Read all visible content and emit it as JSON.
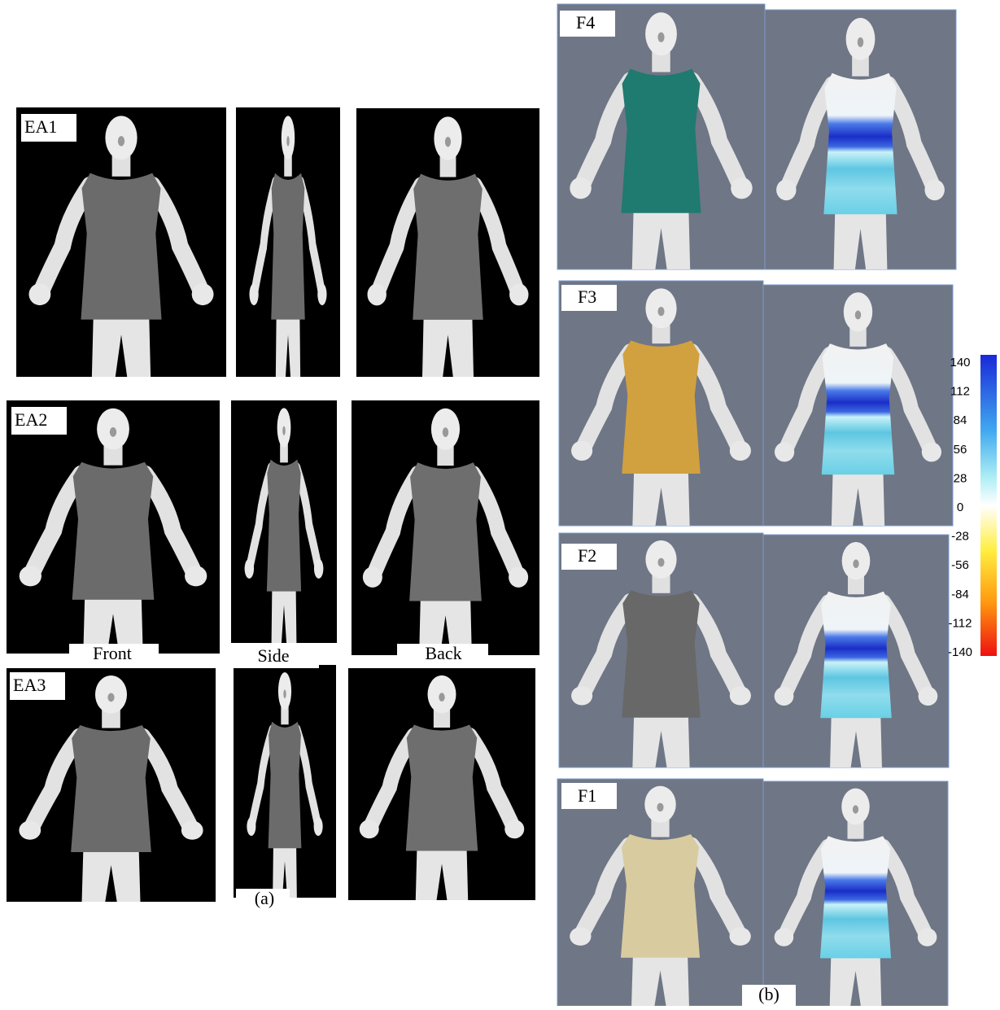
{
  "panel_a": {
    "rows": [
      "EA1",
      "EA2",
      "EA3"
    ],
    "views": [
      "Front",
      "Side",
      "Back"
    ],
    "caption": "(a)"
  },
  "panel_b": {
    "rows": [
      "F4",
      "F3",
      "F2",
      "F1"
    ],
    "caption": "(b)"
  },
  "colorbar": {
    "ticks": [
      140,
      112,
      84,
      56,
      28,
      0,
      -28,
      -56,
      -84,
      -112,
      -140
    ]
  }
}
